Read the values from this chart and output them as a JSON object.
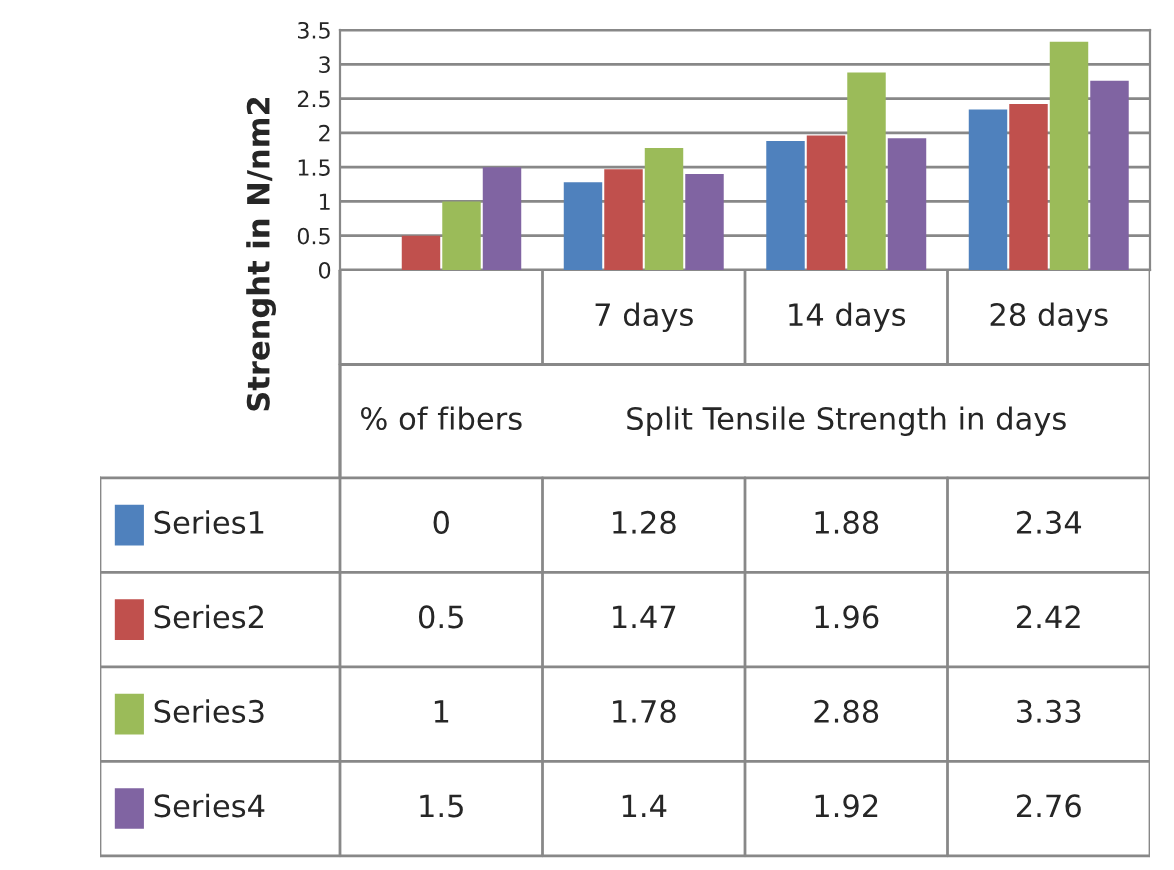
{
  "chart_data": {
    "type": "bar",
    "ylabel": "Strenght in N/nm2",
    "categories": [
      null,
      "7 days",
      "14 days",
      "28 days"
    ],
    "legend": "bottom left",
    "series": [
      {
        "name": "Series1",
        "color": "#4f81bd",
        "values": [
          0,
          1.28,
          1.88,
          2.34
        ]
      },
      {
        "name": "Series2",
        "color": "#c0504d",
        "values": [
          0.5,
          1.47,
          1.96,
          2.42
        ]
      },
      {
        "name": "Series3",
        "color": "#9bbb59",
        "values": [
          1,
          1.78,
          2.88,
          3.33
        ]
      },
      {
        "name": "Series4",
        "color": "#8064a2",
        "values": [
          1.5,
          1.4,
          1.92,
          2.76
        ]
      }
    ],
    "ylim": [
      0,
      3.5
    ],
    "yticks": [
      0,
      0.5,
      1,
      1.5,
      2,
      2.5,
      3,
      3.5
    ],
    "grid": "y",
    "data_labels": true,
    "annotations": [
      "% of fibers",
      "Split Tensile Strength in days"
    ]
  }
}
